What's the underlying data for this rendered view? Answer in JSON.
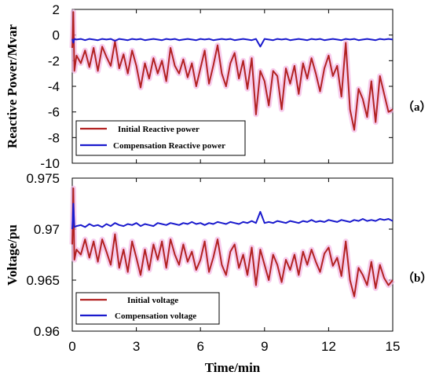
{
  "figure": {
    "xlabel": "Time/min",
    "x_ticks": [
      "0",
      "3",
      "6",
      "9",
      "12",
      "15"
    ]
  },
  "chart_data": [
    {
      "type": "line",
      "panel_label": "（a）",
      "ylabel": "Reactive Power/Mvar",
      "xlim": [
        0,
        15
      ],
      "ylim": [
        -10,
        2
      ],
      "y_ticks": [
        "2",
        "0",
        "-2",
        "-4",
        "-6",
        "-8",
        "-10"
      ],
      "x": [
        0,
        0.05,
        0.1,
        0.2,
        0.4,
        0.6,
        0.8,
        1.0,
        1.2,
        1.4,
        1.6,
        1.8,
        2.0,
        2.2,
        2.4,
        2.6,
        2.8,
        3.0,
        3.2,
        3.4,
        3.6,
        3.8,
        4.0,
        4.2,
        4.4,
        4.6,
        4.8,
        5.0,
        5.2,
        5.4,
        5.6,
        5.8,
        6.0,
        6.2,
        6.4,
        6.6,
        6.8,
        7.0,
        7.2,
        7.4,
        7.6,
        7.8,
        8.0,
        8.2,
        8.4,
        8.6,
        8.8,
        9.0,
        9.2,
        9.4,
        9.6,
        9.8,
        10.0,
        10.2,
        10.4,
        10.6,
        10.8,
        11.0,
        11.2,
        11.4,
        11.6,
        11.8,
        12.0,
        12.2,
        12.4,
        12.6,
        12.8,
        13.0,
        13.2,
        13.4,
        13.6,
        13.8,
        14.0,
        14.2,
        14.4,
        14.6,
        14.8,
        15.0
      ],
      "series": [
        {
          "name": "Initial Reactive power",
          "color": "#b22222",
          "values": [
            -1.0,
            1.8,
            -2.8,
            -1.6,
            -2.2,
            -1.2,
            -2.5,
            -1.0,
            -2.8,
            -0.9,
            -1.7,
            -2.4,
            -0.5,
            -2.6,
            -1.5,
            -3.0,
            -1.2,
            -2.4,
            -4.1,
            -2.2,
            -3.4,
            -1.8,
            -3.0,
            -2.0,
            -3.6,
            -1.0,
            -2.4,
            -3.0,
            -1.9,
            -3.3,
            -2.2,
            -4.0,
            -2.6,
            -1.2,
            -3.8,
            -2.4,
            -0.8,
            -3.0,
            -4.0,
            -2.2,
            -1.4,
            -3.4,
            -2.0,
            -4.2,
            -1.8,
            -6.2,
            -2.8,
            -3.6,
            -5.5,
            -2.8,
            -3.2,
            -5.8,
            -2.6,
            -3.8,
            -2.4,
            -4.6,
            -2.2,
            -3.4,
            -1.8,
            -3.0,
            -4.4,
            -2.6,
            -1.6,
            -3.2,
            -2.4,
            -4.8,
            -0.6,
            -5.8,
            -7.4,
            -4.2,
            -5.0,
            -6.4,
            -3.6,
            -6.8,
            -3.2,
            -4.6,
            -6.0,
            -5.8
          ]
        },
        {
          "name": "Compensation Reactive power",
          "color": "#1a1acd",
          "values": [
            -0.3,
            -0.6,
            -0.3,
            -0.35,
            -0.3,
            -0.4,
            -0.3,
            -0.35,
            -0.4,
            -0.3,
            -0.35,
            -0.3,
            -0.45,
            -0.3,
            -0.35,
            -0.4,
            -0.3,
            -0.35,
            -0.3,
            -0.4,
            -0.35,
            -0.3,
            -0.35,
            -0.4,
            -0.3,
            -0.35,
            -0.3,
            -0.4,
            -0.35,
            -0.3,
            -0.35,
            -0.4,
            -0.3,
            -0.35,
            -0.3,
            -0.4,
            -0.35,
            -0.3,
            -0.35,
            -0.3,
            -0.4,
            -0.35,
            -0.3,
            -0.35,
            -0.4,
            -0.3,
            -0.9,
            -0.3,
            -0.35,
            -0.4,
            -0.3,
            -0.35,
            -0.3,
            -0.4,
            -0.35,
            -0.3,
            -0.35,
            -0.4,
            -0.3,
            -0.35,
            -0.3,
            -0.4,
            -0.35,
            -0.3,
            -0.35,
            -0.4,
            -0.3,
            -0.35,
            -0.3,
            -0.4,
            -0.35,
            -0.3,
            -0.35,
            -0.4,
            -0.3,
            -0.35,
            -0.3,
            -0.35
          ]
        }
      ],
      "legend_loc": "lower left"
    },
    {
      "type": "line",
      "panel_label": "（b）",
      "ylabel": "Voltage/pu",
      "xlim": [
        0,
        15
      ],
      "ylim": [
        0.96,
        0.975
      ],
      "y_ticks": [
        "0.975",
        "0.97",
        "0.965",
        "0.96"
      ],
      "x": [
        0,
        0.05,
        0.1,
        0.2,
        0.4,
        0.6,
        0.8,
        1.0,
        1.2,
        1.4,
        1.6,
        1.8,
        2.0,
        2.2,
        2.4,
        2.6,
        2.8,
        3.0,
        3.2,
        3.4,
        3.6,
        3.8,
        4.0,
        4.2,
        4.4,
        4.6,
        4.8,
        5.0,
        5.2,
        5.4,
        5.6,
        5.8,
        6.0,
        6.2,
        6.4,
        6.6,
        6.8,
        7.0,
        7.2,
        7.4,
        7.6,
        7.8,
        8.0,
        8.2,
        8.4,
        8.6,
        8.8,
        9.0,
        9.2,
        9.4,
        9.6,
        9.8,
        10.0,
        10.2,
        10.4,
        10.6,
        10.8,
        11.0,
        11.2,
        11.4,
        11.6,
        11.8,
        12.0,
        12.2,
        12.4,
        12.6,
        12.8,
        13.0,
        13.2,
        13.4,
        13.6,
        13.8,
        14.0,
        14.2,
        14.4,
        14.6,
        14.8,
        15.0
      ],
      "series": [
        {
          "name": "Initial voltage",
          "color": "#b22222",
          "values": [
            0.9685,
            0.974,
            0.967,
            0.968,
            0.9675,
            0.969,
            0.9672,
            0.9688,
            0.9668,
            0.969,
            0.9678,
            0.9665,
            0.9695,
            0.9662,
            0.968,
            0.9658,
            0.9688,
            0.9672,
            0.9655,
            0.968,
            0.966,
            0.9685,
            0.967,
            0.9688,
            0.9662,
            0.969,
            0.9675,
            0.9665,
            0.9685,
            0.9668,
            0.9678,
            0.966,
            0.967,
            0.9688,
            0.9658,
            0.9672,
            0.969,
            0.9665,
            0.9655,
            0.9678,
            0.9685,
            0.9662,
            0.9675,
            0.9655,
            0.9682,
            0.9645,
            0.968,
            0.9665,
            0.965,
            0.9675,
            0.9665,
            0.9648,
            0.967,
            0.966,
            0.9675,
            0.9655,
            0.9678,
            0.9665,
            0.968,
            0.9668,
            0.9658,
            0.9676,
            0.9682,
            0.9664,
            0.9672,
            0.9654,
            0.9688,
            0.965,
            0.9634,
            0.9662,
            0.9655,
            0.9645,
            0.9668,
            0.9642,
            0.9665,
            0.9652,
            0.9645,
            0.965
          ]
        },
        {
          "name": "Compensation voltage",
          "color": "#1a1acd",
          "values": [
            0.97,
            0.9725,
            0.9702,
            0.9703,
            0.9704,
            0.9702,
            0.9705,
            0.9703,
            0.9704,
            0.9702,
            0.9705,
            0.9703,
            0.9706,
            0.9704,
            0.9703,
            0.9705,
            0.9704,
            0.9706,
            0.9703,
            0.9705,
            0.9704,
            0.9703,
            0.9706,
            0.9705,
            0.9704,
            0.9706,
            0.9705,
            0.9704,
            0.9706,
            0.9705,
            0.9707,
            0.9705,
            0.9706,
            0.9704,
            0.9706,
            0.9705,
            0.9707,
            0.9706,
            0.9705,
            0.9707,
            0.9706,
            0.9705,
            0.9707,
            0.9706,
            0.9708,
            0.9706,
            0.9717,
            0.9706,
            0.9707,
            0.9706,
            0.9708,
            0.9707,
            0.9706,
            0.9708,
            0.9707,
            0.9706,
            0.9708,
            0.9707,
            0.9709,
            0.9707,
            0.9708,
            0.9707,
            0.9709,
            0.9708,
            0.9707,
            0.9709,
            0.9708,
            0.9707,
            0.9709,
            0.9708,
            0.971,
            0.9708,
            0.9709,
            0.9708,
            0.971,
            0.9709,
            0.971,
            0.9708
          ]
        }
      ],
      "legend_loc": "lower left"
    }
  ]
}
